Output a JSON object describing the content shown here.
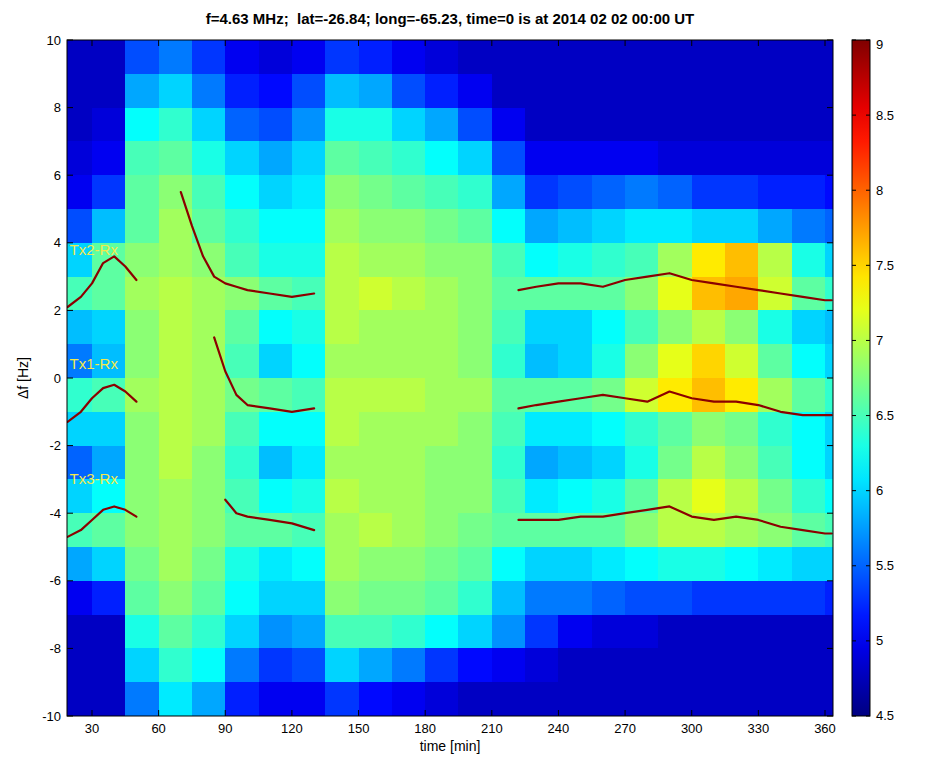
{
  "chart_data": {
    "type": "heatmap",
    "title": "f=4.63 MHz;  lat=-26.84; long=-65.23, time=0 is at 2014 02 02 00:00 UT",
    "x_label": "time [min]",
    "y_label": "Δf [Hz]",
    "xlim": [
      18.75,
      363.6
    ],
    "ylim": [
      -10,
      10
    ],
    "xticks": [
      30,
      60,
      90,
      120,
      150,
      180,
      210,
      240,
      270,
      300,
      330,
      360
    ],
    "yticks": [
      -10,
      -8,
      -6,
      -4,
      -2,
      0,
      2,
      4,
      6,
      8,
      10
    ],
    "grid": false,
    "cells": {
      "x": [
        15,
        30,
        45,
        60,
        75,
        90,
        105,
        120,
        135,
        150,
        165,
        180,
        195,
        210,
        225,
        240,
        255,
        270,
        285,
        300,
        315,
        330,
        345,
        360,
        375
      ],
      "y": [
        10,
        9,
        8,
        7,
        6,
        5,
        4,
        3,
        2,
        1,
        0,
        -1,
        -2,
        -3,
        -4,
        -5,
        -6,
        -7,
        -8,
        -9,
        -10
      ],
      "values": [
        [
          4.8,
          4.8,
          5.4,
          5.6,
          5.3,
          5.0,
          4.9,
          5.0,
          5.3,
          5.2,
          5.0,
          4.9,
          4.8,
          4.8,
          4.8,
          4.8,
          4.8,
          4.8,
          4.8,
          4.8,
          4.8,
          4.8,
          4.8,
          4.8
        ],
        [
          4.8,
          4.8,
          5.8,
          6.0,
          5.6,
          5.2,
          5.1,
          5.4,
          5.9,
          5.8,
          5.4,
          5.2,
          5.0,
          4.8,
          4.8,
          4.8,
          4.8,
          4.8,
          4.8,
          4.8,
          4.8,
          4.8,
          4.8,
          4.8
        ],
        [
          4.8,
          4.9,
          6.2,
          6.4,
          6.0,
          5.5,
          5.4,
          5.7,
          6.3,
          6.3,
          6.0,
          5.8,
          5.4,
          5.0,
          4.8,
          4.8,
          4.8,
          4.8,
          4.8,
          4.8,
          4.8,
          4.8,
          4.8,
          4.8
        ],
        [
          4.9,
          5.0,
          6.5,
          6.6,
          6.3,
          6.0,
          5.8,
          6.0,
          6.6,
          6.5,
          6.4,
          6.2,
          6.0,
          5.4,
          5.0,
          5.0,
          5.0,
          5.0,
          4.9,
          4.9,
          4.9,
          4.9,
          4.9,
          4.9
        ],
        [
          5.0,
          5.3,
          6.6,
          6.8,
          6.5,
          6.2,
          6.0,
          6.1,
          6.8,
          6.7,
          6.6,
          6.5,
          6.4,
          5.8,
          5.3,
          5.4,
          5.5,
          5.6,
          5.5,
          5.3,
          5.3,
          5.2,
          5.2,
          5.1
        ],
        [
          5.4,
          5.9,
          6.6,
          6.9,
          6.6,
          6.4,
          6.2,
          6.2,
          6.9,
          6.8,
          6.8,
          6.7,
          6.6,
          6.2,
          5.8,
          5.9,
          6.0,
          6.1,
          6.1,
          6.0,
          6.0,
          5.8,
          5.6,
          5.5
        ],
        [
          6.0,
          6.6,
          6.8,
          6.9,
          6.8,
          6.5,
          6.3,
          6.3,
          7.0,
          6.9,
          6.9,
          6.8,
          6.8,
          6.5,
          6.2,
          6.3,
          6.4,
          6.5,
          6.9,
          7.4,
          7.6,
          7.0,
          6.3,
          6.0
        ],
        [
          6.5,
          6.6,
          6.9,
          7.0,
          6.9,
          6.8,
          6.6,
          6.5,
          7.0,
          7.1,
          7.0,
          6.9,
          6.8,
          6.6,
          6.6,
          6.6,
          6.6,
          6.8,
          7.2,
          7.6,
          7.7,
          7.1,
          6.6,
          6.4
        ],
        [
          5.9,
          6.0,
          6.8,
          7.0,
          6.9,
          6.6,
          6.2,
          6.3,
          7.0,
          6.9,
          6.9,
          6.9,
          6.8,
          6.5,
          6.0,
          6.0,
          6.2,
          6.5,
          6.8,
          7.0,
          6.8,
          6.3,
          6.0,
          5.9
        ],
        [
          5.6,
          5.9,
          6.8,
          7.0,
          6.9,
          6.5,
          6.0,
          6.2,
          6.9,
          6.9,
          6.9,
          6.9,
          6.8,
          6.4,
          5.9,
          6.0,
          6.3,
          6.8,
          7.2,
          7.5,
          7.1,
          6.6,
          6.2,
          6.0
        ],
        [
          6.4,
          6.5,
          6.9,
          7.0,
          6.9,
          6.7,
          6.6,
          6.5,
          7.0,
          7.0,
          7.0,
          6.9,
          6.9,
          6.6,
          6.6,
          6.6,
          6.7,
          7.1,
          7.4,
          7.6,
          7.4,
          6.9,
          6.6,
          6.4
        ],
        [
          6.0,
          6.0,
          6.8,
          7.0,
          6.9,
          6.5,
          6.2,
          6.2,
          7.0,
          6.9,
          6.9,
          6.9,
          6.8,
          6.5,
          6.1,
          6.1,
          6.2,
          6.4,
          6.6,
          6.8,
          6.7,
          6.4,
          6.2,
          6.0
        ],
        [
          5.5,
          5.8,
          6.8,
          7.0,
          6.8,
          6.4,
          5.9,
          6.1,
          6.9,
          6.9,
          6.9,
          6.8,
          6.8,
          6.4,
          5.8,
          5.9,
          6.0,
          6.3,
          6.7,
          7.0,
          6.8,
          6.5,
          6.2,
          6.0
        ],
        [
          6.0,
          6.2,
          6.8,
          6.9,
          6.8,
          6.5,
          6.2,
          6.3,
          7.0,
          6.9,
          6.9,
          6.8,
          6.8,
          6.5,
          6.1,
          6.2,
          6.3,
          6.6,
          7.0,
          7.2,
          7.0,
          6.7,
          6.4,
          6.2
        ],
        [
          6.5,
          6.6,
          6.8,
          6.9,
          6.8,
          6.6,
          6.6,
          6.5,
          6.9,
          7.0,
          6.9,
          6.8,
          6.7,
          6.6,
          6.6,
          6.6,
          6.6,
          6.8,
          7.0,
          7.0,
          6.9,
          6.8,
          6.6,
          6.5
        ],
        [
          5.8,
          6.0,
          6.7,
          6.9,
          6.7,
          6.3,
          6.1,
          6.2,
          6.9,
          6.8,
          6.8,
          6.7,
          6.6,
          6.2,
          6.0,
          6.0,
          6.1,
          6.2,
          6.3,
          6.3,
          6.2,
          6.1,
          6.0,
          6.0
        ],
        [
          5.0,
          5.2,
          6.6,
          6.8,
          6.6,
          6.2,
          6.0,
          6.0,
          6.8,
          6.7,
          6.7,
          6.6,
          6.4,
          5.9,
          5.6,
          5.6,
          5.5,
          5.4,
          5.4,
          5.3,
          5.3,
          5.3,
          5.3,
          5.2
        ],
        [
          4.8,
          4.8,
          6.3,
          6.6,
          6.4,
          6.0,
          5.7,
          5.8,
          6.5,
          6.5,
          6.4,
          6.2,
          6.0,
          5.7,
          5.3,
          5.0,
          4.9,
          4.9,
          4.8,
          4.8,
          4.8,
          4.8,
          4.8,
          4.8
        ],
        [
          4.8,
          4.8,
          6.0,
          6.4,
          6.2,
          5.6,
          5.3,
          5.4,
          6.0,
          5.8,
          5.6,
          5.3,
          5.1,
          5.0,
          4.9,
          4.8,
          4.8,
          4.8,
          4.8,
          4.8,
          4.8,
          4.8,
          4.8,
          4.8
        ],
        [
          4.8,
          4.8,
          5.6,
          6.1,
          5.8,
          5.2,
          5.0,
          5.0,
          5.3,
          5.1,
          5.0,
          4.9,
          4.8,
          4.8,
          4.8,
          4.8,
          4.8,
          4.8,
          4.8,
          4.8,
          4.8,
          4.8,
          4.8,
          4.8
        ]
      ]
    },
    "colorbar": {
      "lim": [
        4.5,
        9
      ],
      "ticks": [
        4.5,
        5,
        5.5,
        6,
        6.5,
        7,
        7.5,
        8,
        8.5,
        9
      ]
    },
    "x": [
      19,
      25,
      30,
      35,
      40,
      45,
      50,
      60,
      70,
      75,
      80,
      85,
      90,
      95,
      100,
      110,
      120,
      130,
      175,
      222,
      230,
      240,
      250,
      260,
      270,
      280,
      290,
      300,
      310,
      320,
      330,
      340,
      350,
      360,
      363
    ],
    "series": [
      {
        "name": "Tx2-Rx",
        "color": "#8b0000",
        "values": [
          2.1,
          2.4,
          2.8,
          3.4,
          3.6,
          3.3,
          2.9,
          null,
          5.5,
          4.5,
          3.6,
          3.0,
          2.8,
          2.7,
          2.6,
          2.5,
          2.4,
          2.5,
          null,
          2.6,
          2.7,
          2.8,
          2.8,
          2.7,
          2.9,
          3.0,
          3.1,
          2.9,
          2.8,
          2.7,
          2.6,
          2.5,
          2.4,
          2.3,
          2.3
        ]
      },
      {
        "name": "Tx1-Rx",
        "color": "#8b0000",
        "values": [
          -1.3,
          -1.0,
          -0.6,
          -0.3,
          -0.2,
          -0.4,
          -0.7,
          null,
          null,
          null,
          null,
          1.2,
          0.2,
          -0.5,
          -0.8,
          -0.9,
          -1.0,
          -0.9,
          null,
          -0.9,
          -0.8,
          -0.7,
          -0.6,
          -0.5,
          -0.6,
          -0.7,
          -0.4,
          -0.6,
          -0.7,
          -0.7,
          -0.8,
          -1.0,
          -1.1,
          -1.1,
          -1.1
        ]
      },
      {
        "name": "Tx3-Rx",
        "color": "#8b0000",
        "values": [
          -4.7,
          -4.5,
          -4.2,
          -3.9,
          -3.8,
          -3.9,
          -4.1,
          null,
          null,
          null,
          null,
          null,
          -3.6,
          -4.0,
          -4.1,
          -4.2,
          -4.3,
          -4.5,
          null,
          -4.2,
          -4.2,
          -4.2,
          -4.1,
          -4.1,
          -4.0,
          -3.9,
          -3.8,
          -4.1,
          -4.2,
          -4.1,
          -4.2,
          -4.4,
          -4.5,
          -4.6,
          -4.6
        ]
      }
    ]
  }
}
